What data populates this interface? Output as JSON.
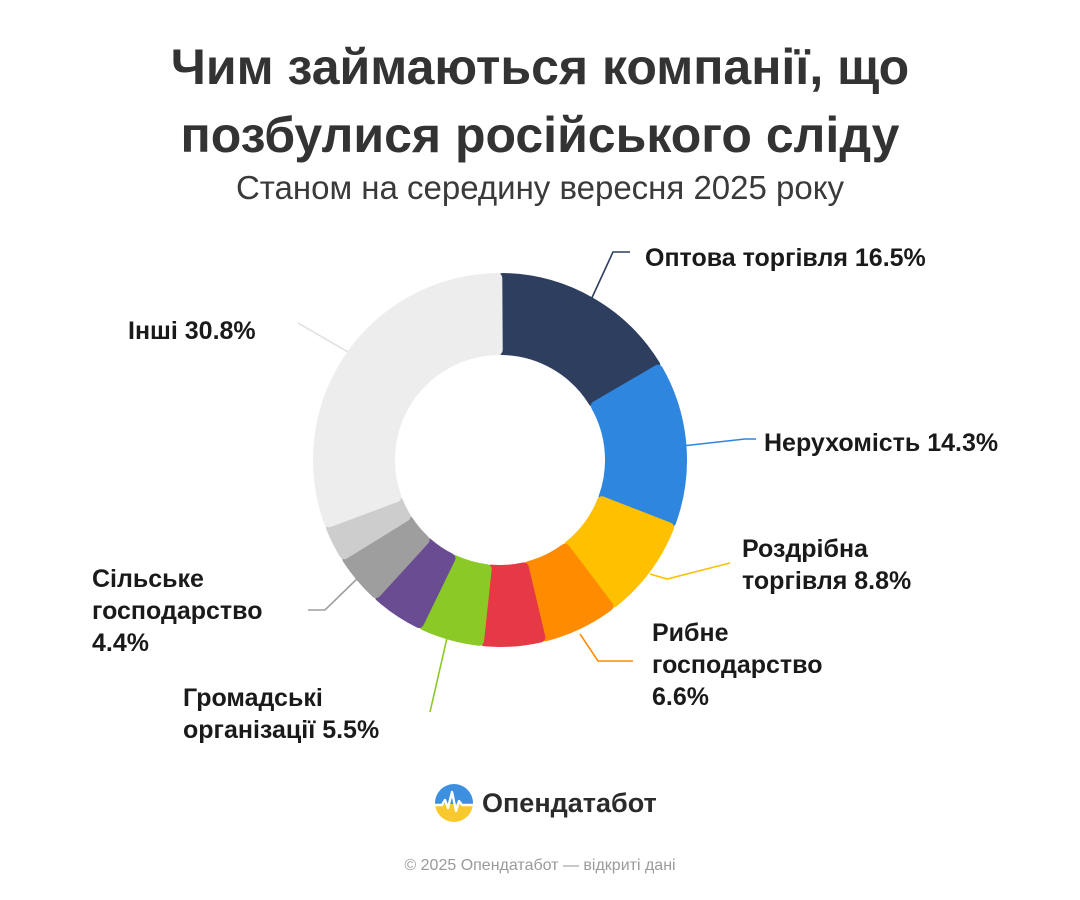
{
  "title_line1": "Чим займаються компанії, що",
  "title_line2": "позбулися російського сліду",
  "subtitle": "Станом на середину вересня 2025 року",
  "brand": "Опендатабот",
  "copyright": "© 2025 Опендатабот — відкриті дані",
  "chart_data": {
    "type": "pie",
    "donut": true,
    "title": "Чим займаються компанії, що позбулися російського сліду",
    "subtitle": "Станом на середину вересня 2025 року",
    "unit": "%",
    "legend": "none",
    "slices": [
      {
        "label": "Оптова торгівля",
        "value": 16.5,
        "value_text": "16.5%",
        "color": "#2E3E5E",
        "label_lines": [
          "Оптова торгівля 16.5%"
        ]
      },
      {
        "label": "Нерухомість",
        "value": 14.3,
        "value_text": "14.3%",
        "color": "#2E86DE",
        "label_lines": [
          "Нерухомість 14.3%"
        ]
      },
      {
        "label": "Роздрібна торгівля",
        "value": 8.8,
        "value_text": "8.8%",
        "color": "#FFC000",
        "label_lines": [
          "Роздрібна",
          "торгівля 8.8%"
        ]
      },
      {
        "label": "Рибне господарство",
        "value": 6.6,
        "value_text": "6.6%",
        "color": "#FF8C00",
        "label_lines": [
          "Рибне",
          "господарство",
          "6.6%"
        ]
      },
      {
        "label": "",
        "value": 5.4,
        "value_text": "",
        "color": "#E63946",
        "label_lines": []
      },
      {
        "label": "Громадські організації",
        "value": 5.5,
        "value_text": "5.5%",
        "color": "#8AC926",
        "label_lines": [
          "Громадські",
          "організації 5.5%"
        ]
      },
      {
        "label": "",
        "value": 4.6,
        "value_text": "",
        "color": "#6A4C93",
        "label_lines": []
      },
      {
        "label": "Сільське господарство",
        "value": 4.4,
        "value_text": "4.4%",
        "color": "#9E9E9E",
        "label_lines": [
          "Сільське",
          "господарство",
          "4.4%"
        ]
      },
      {
        "label": "",
        "value": 3.1,
        "value_text": "",
        "color": "#CDCDCD",
        "label_lines": []
      },
      {
        "label": "Інші",
        "value": 30.8,
        "value_text": "30.8%",
        "color": "#EDEDED",
        "label_lines": [
          "Інші 30.8%"
        ]
      }
    ]
  }
}
